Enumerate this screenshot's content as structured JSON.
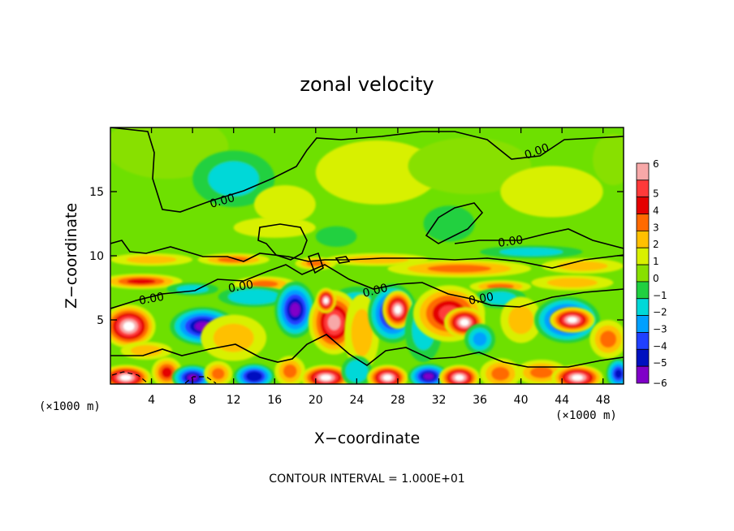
{
  "chart_data": {
    "type": "heatmap",
    "title": "zonal velocity",
    "xlabel": "X−coordinate",
    "ylabel": "Z−coordinate",
    "x_unit": "(×1000 m)",
    "y_unit": "(×1000 m)",
    "xlim": [
      0,
      50
    ],
    "ylim": [
      0,
      20
    ],
    "x_ticks": [
      4,
      8,
      12,
      16,
      20,
      24,
      28,
      32,
      36,
      40,
      44,
      48
    ],
    "y_ticks": [
      5,
      10,
      15
    ],
    "colorbar": {
      "levels": [
        6,
        5,
        4,
        3,
        2,
        1,
        0,
        -1,
        -2,
        -3,
        -4,
        -5,
        -6
      ],
      "tick_labels": [
        "6",
        "5",
        "4",
        "3",
        "2",
        "1",
        "0",
        "−1",
        "−2",
        "−3",
        "−4",
        "−5",
        "−6"
      ],
      "colors": [
        "#f7a8a8",
        "#ff3a3a",
        "#e40000",
        "#ff6a00",
        "#ffc000",
        "#d8f000",
        "#88e000",
        "#20d040",
        "#00d8d8",
        "#00a0ff",
        "#2040ff",
        "#0010c0",
        "#8000c8"
      ]
    },
    "contour_label": "0.00",
    "contour_interval_text": "CONTOUR INTERVAL = 1.000E+01",
    "blobs": [
      {
        "x": 5.5,
        "z": 18.5,
        "rx": 6,
        "rz": 2.5,
        "v": 0.3
      },
      {
        "x": 12,
        "z": 16,
        "rx": 4,
        "rz": 2.2,
        "v": -1.6
      },
      {
        "x": 17,
        "z": 14,
        "rx": 3,
        "rz": 1.5,
        "v": 0.5
      },
      {
        "x": 26,
        "z": 16.5,
        "rx": 6,
        "rz": 2.5,
        "v": 0.5
      },
      {
        "x": 35,
        "z": 17,
        "rx": 6,
        "rz": 2.2,
        "v": 0.4
      },
      {
        "x": 43,
        "z": 15,
        "rx": 5,
        "rz": 2,
        "v": 0.9
      },
      {
        "x": 49,
        "z": 17.5,
        "rx": 2,
        "rz": 2,
        "v": -0.5
      },
      {
        "x": 33,
        "z": 12.5,
        "rx": 2.5,
        "rz": 1.4,
        "v": -1.0
      },
      {
        "x": 16,
        "z": 12.2,
        "rx": 4,
        "rz": 0.8,
        "v": 1.0
      },
      {
        "x": 22,
        "z": 11.5,
        "rx": 2,
        "rz": 0.8,
        "v": -0.8
      },
      {
        "x": 4,
        "z": 9.7,
        "rx": 4,
        "rz": 0.5,
        "v": 2.0
      },
      {
        "x": 12,
        "z": 9.7,
        "rx": 3.5,
        "rz": 0.5,
        "v": 2.5
      },
      {
        "x": 20,
        "z": 9.4,
        "rx": 2,
        "rz": 0.5,
        "v": 2.5
      },
      {
        "x": 34,
        "z": 9.0,
        "rx": 7,
        "rz": 0.7,
        "v": 3.0
      },
      {
        "x": 46,
        "z": 9.2,
        "rx": 4,
        "rz": 0.6,
        "v": 2.2
      },
      {
        "x": 41,
        "z": 10.3,
        "rx": 5,
        "rz": 0.5,
        "v": -2.2
      },
      {
        "x": 26,
        "z": 9.7,
        "rx": 5,
        "rz": 0.5,
        "v": 1.6
      },
      {
        "x": 3,
        "z": 8.0,
        "rx": 4,
        "rz": 0.6,
        "v": 4.2
      },
      {
        "x": 15,
        "z": 7.8,
        "rx": 3,
        "rz": 0.6,
        "v": 2.6
      },
      {
        "x": 38,
        "z": 7.6,
        "rx": 3,
        "rz": 0.5,
        "v": 2.8
      },
      {
        "x": 45,
        "z": 7.9,
        "rx": 4,
        "rz": 0.6,
        "v": 2.2
      },
      {
        "x": 8,
        "z": 7.4,
        "rx": 2.5,
        "rz": 0.5,
        "v": -2.2
      },
      {
        "x": 14,
        "z": 6.8,
        "rx": 3.5,
        "rz": 0.8,
        "v": -2.5
      },
      {
        "x": 24,
        "z": 6.4,
        "rx": 2.5,
        "rz": 1.2,
        "v": -2.3
      },
      {
        "x": 38,
        "z": 6.7,
        "rx": 2.5,
        "rz": 0.8,
        "v": -2.4
      },
      {
        "x": 1.8,
        "z": 4.5,
        "rx": 2.6,
        "rz": 1.7,
        "v": 7.0
      },
      {
        "x": 3.5,
        "z": 2.6,
        "rx": 2.5,
        "rz": 0.7,
        "v": 1.8
      },
      {
        "x": 9,
        "z": 4.5,
        "rx": 3.2,
        "rz": 1.5,
        "v": -6.0
      },
      {
        "x": 12,
        "z": 3.6,
        "rx": 3.2,
        "rz": 1.8,
        "v": 2.2
      },
      {
        "x": 18,
        "z": 5.8,
        "rx": 2,
        "rz": 2.2,
        "v": -6.0
      },
      {
        "x": 21.8,
        "z": 4.8,
        "rx": 2.5,
        "rz": 2.5,
        "v": 5.5
      },
      {
        "x": 21,
        "z": 6.5,
        "rx": 1,
        "rz": 1,
        "v": 7.0
      },
      {
        "x": 24.5,
        "z": 4,
        "rx": 1.7,
        "rz": 3,
        "v": 1.8
      },
      {
        "x": 27.5,
        "z": 5.5,
        "rx": 2.4,
        "rz": 2.3,
        "v": -6.0
      },
      {
        "x": 28,
        "z": 5.8,
        "rx": 1.5,
        "rz": 1.5,
        "v": 7.0
      },
      {
        "x": 30.5,
        "z": 4.2,
        "rx": 1.8,
        "rz": 2.5,
        "v": -2.0
      },
      {
        "x": 33,
        "z": 5.5,
        "rx": 3.5,
        "rz": 2.2,
        "v": 4.8
      },
      {
        "x": 34.5,
        "z": 4.8,
        "rx": 2,
        "rz": 1.2,
        "v": 7.0
      },
      {
        "x": 36,
        "z": 3.5,
        "rx": 1.5,
        "rz": 1.2,
        "v": -3.0
      },
      {
        "x": 40,
        "z": 5.0,
        "rx": 2,
        "rz": 1.8,
        "v": 2.2
      },
      {
        "x": 44.5,
        "z": 5.0,
        "rx": 3.2,
        "rz": 1.8,
        "v": -6.0
      },
      {
        "x": 45,
        "z": 5.0,
        "rx": 2.2,
        "rz": 1.0,
        "v": 7.0
      },
      {
        "x": 48.5,
        "z": 3.5,
        "rx": 1.8,
        "rz": 1.5,
        "v": 3.0
      },
      {
        "x": 1.5,
        "z": 0.5,
        "rx": 2.5,
        "rz": 1,
        "v": 7.0
      },
      {
        "x": 5.5,
        "z": 0.9,
        "rx": 1.5,
        "rz": 1.2,
        "v": 3.5
      },
      {
        "x": 8,
        "z": 0.5,
        "rx": 2,
        "rz": 1,
        "v": -6.0
      },
      {
        "x": 10.5,
        "z": 0.8,
        "rx": 1.4,
        "rz": 1,
        "v": 3.0
      },
      {
        "x": 14,
        "z": 0.6,
        "rx": 2,
        "rz": 1,
        "v": -5.5
      },
      {
        "x": 17.5,
        "z": 1.0,
        "rx": 1.5,
        "rz": 1.2,
        "v": 3.0
      },
      {
        "x": 21,
        "z": 0.5,
        "rx": 2.5,
        "rz": 1,
        "v": 7.0
      },
      {
        "x": 24,
        "z": 1.0,
        "rx": 1.5,
        "rz": 1.2,
        "v": -2.5
      },
      {
        "x": 27,
        "z": 0.5,
        "rx": 2,
        "rz": 1,
        "v": 7.0
      },
      {
        "x": 31,
        "z": 0.6,
        "rx": 2,
        "rz": 1,
        "v": -6.0
      },
      {
        "x": 34,
        "z": 0.5,
        "rx": 2,
        "rz": 1,
        "v": 7.0
      },
      {
        "x": 38,
        "z": 0.8,
        "rx": 2,
        "rz": 1.2,
        "v": 2.5
      },
      {
        "x": 42,
        "z": 0.9,
        "rx": 2.5,
        "rz": 1,
        "v": 3.2
      },
      {
        "x": 45.5,
        "z": 0.5,
        "rx": 2.5,
        "rz": 1,
        "v": 7.0
      },
      {
        "x": 49.5,
        "z": 0.8,
        "rx": 1.2,
        "rz": 1.2,
        "v": -5.0
      }
    ]
  }
}
